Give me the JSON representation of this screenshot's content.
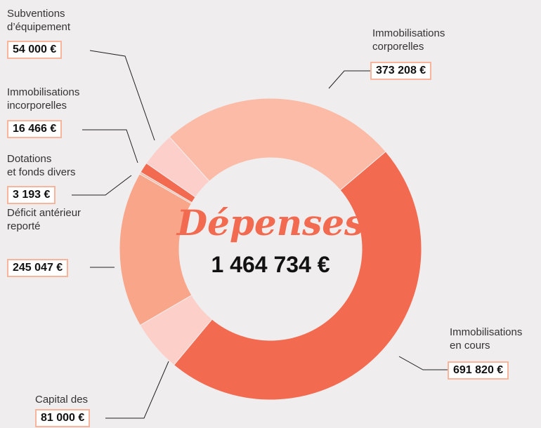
{
  "chart_data": {
    "type": "donut",
    "title": "Dépenses",
    "total": 1464734,
    "total_label": "1 464 734 €",
    "categories": [
      "Immobilisations\ncorporelles",
      "Immobilisations\nen cours",
      "Capital des\nemprunts",
      "Déficit antérieur\nreporté",
      "Dotations\net fonds divers",
      "Immobilisations\nincorporelles",
      "Subventions\nd’équipement"
    ],
    "values": [
      373208,
      691820,
      81000,
      245047,
      3193,
      16466,
      54000
    ],
    "value_labels": [
      "373 208 €",
      "691 820 €",
      "81 000 €",
      "245 047 €",
      "3 193 €",
      "16 466 €",
      "54 000 €"
    ],
    "colors": [
      "#fbbba6",
      "#f26a50",
      "#fccfc9",
      "#f8a58a",
      "#f8b8a2",
      "#f26a50",
      "#fccfcb"
    ]
  }
}
